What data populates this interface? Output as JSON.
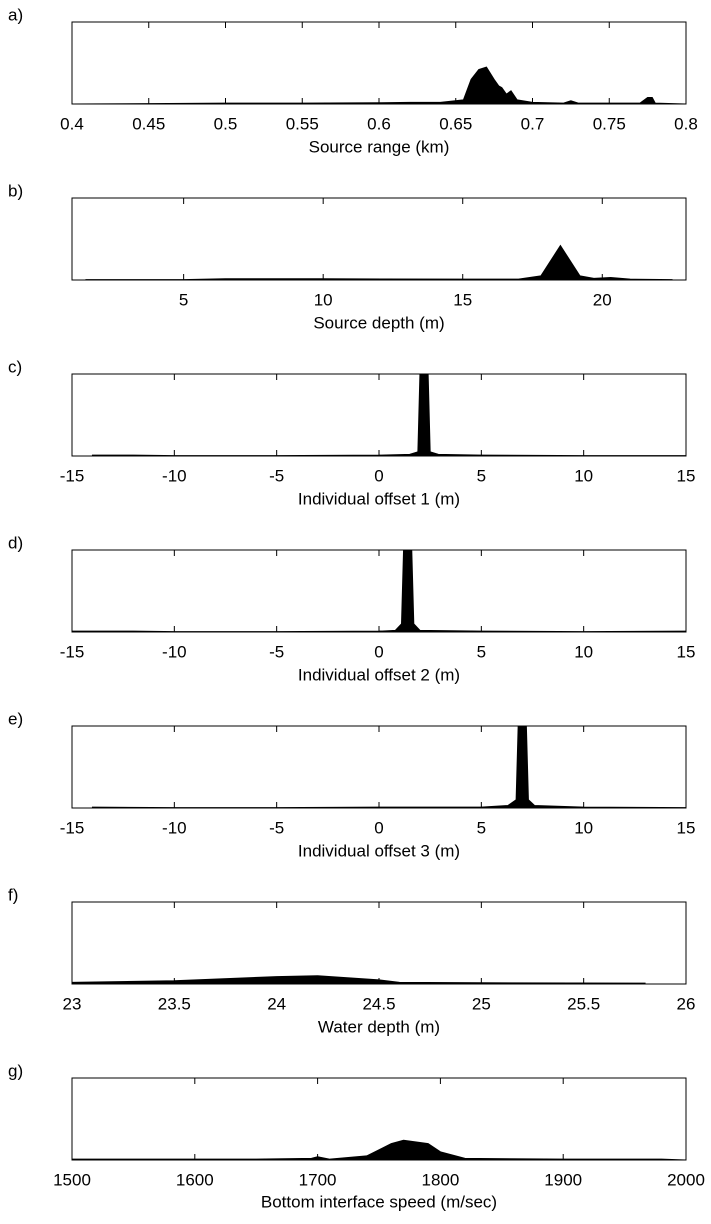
{
  "chart_data": [
    {
      "type": "area",
      "panel_label": "a)",
      "xlabel": "Source range (km)",
      "color": "#000000",
      "x": [
        0.4,
        0.45,
        0.5,
        0.55,
        0.6,
        0.62,
        0.64,
        0.655,
        0.66,
        0.665,
        0.67,
        0.675,
        0.678,
        0.68,
        0.683,
        0.686,
        0.69,
        0.7,
        0.72,
        0.725,
        0.73,
        0.77,
        0.775,
        0.778,
        0.78,
        0.8
      ],
      "values": [
        0,
        0.005,
        0.01,
        0.01,
        0.015,
        0.02,
        0.02,
        0.05,
        0.3,
        0.42,
        0.45,
        0.3,
        0.22,
        0.2,
        0.12,
        0.16,
        0.05,
        0.02,
        0.01,
        0.04,
        0.01,
        0.01,
        0.08,
        0.08,
        0.01,
        0
      ],
      "xlim": [
        0.4,
        0.8
      ],
      "ylim": [
        0,
        1
      ],
      "xticks": [
        0.4,
        0.45,
        0.5,
        0.55,
        0.6,
        0.65,
        0.7,
        0.75,
        0.8
      ]
    },
    {
      "type": "area",
      "panel_label": "b)",
      "xlabel": "Source depth (m)",
      "color": "#000000",
      "x": [
        1.5,
        5,
        6.5,
        10,
        15,
        17,
        17.8,
        18.5,
        19.2,
        19.7,
        20.3,
        21,
        22.5
      ],
      "values": [
        0.005,
        0.005,
        0.015,
        0.015,
        0.01,
        0.01,
        0.05,
        0.42,
        0.05,
        0.02,
        0.03,
        0.01,
        0.005
      ],
      "xlim": [
        1,
        23
      ],
      "ylim": [
        0,
        1
      ],
      "xticks": [
        5,
        10,
        15,
        20
      ]
    },
    {
      "type": "area",
      "panel_label": "c)",
      "xlabel": "Individual offset 1 (m)",
      "color": "#000000",
      "x": [
        -14,
        -12,
        -10,
        -5,
        0,
        1.5,
        1.9,
        2.0,
        2.2,
        2.4,
        2.5,
        2.9,
        5,
        10,
        15
      ],
      "values": [
        0.01,
        0.01,
        0.005,
        0.005,
        0.01,
        0.02,
        0.05,
        1,
        1,
        1,
        0.05,
        0.02,
        0.01,
        0.005,
        0.005
      ],
      "xlim": [
        -15,
        15
      ],
      "ylim": [
        0,
        1
      ],
      "xticks": [
        -15,
        -10,
        -5,
        0,
        5,
        10,
        15
      ]
    },
    {
      "type": "area",
      "panel_label": "d)",
      "xlabel": "Individual offset 2 (m)",
      "color": "#000000",
      "x": [
        -15,
        -12,
        -10,
        -5,
        0,
        0.8,
        1.1,
        1.2,
        1.4,
        1.6,
        1.7,
        2.0,
        5,
        10,
        15
      ],
      "values": [
        0.01,
        0.01,
        0.005,
        0.005,
        0.01,
        0.02,
        0.1,
        1,
        1,
        1,
        0.1,
        0.02,
        0.01,
        0.005,
        0.01
      ],
      "xlim": [
        -15,
        15
      ],
      "ylim": [
        0,
        1
      ],
      "xticks": [
        -15,
        -10,
        -5,
        0,
        5,
        10,
        15
      ]
    },
    {
      "type": "area",
      "panel_label": "e)",
      "xlabel": "Individual offset 3 (m)",
      "color": "#000000",
      "x": [
        -14,
        -10,
        -5,
        0,
        5,
        6.3,
        6.7,
        6.8,
        7.0,
        7.2,
        7.3,
        7.6,
        10,
        15
      ],
      "values": [
        0.01,
        0.005,
        0.005,
        0.01,
        0.01,
        0.03,
        0.1,
        1,
        1,
        1,
        0.1,
        0.03,
        0.01,
        0.005
      ],
      "xlim": [
        -15,
        15
      ],
      "ylim": [
        0,
        1
      ],
      "xticks": [
        -15,
        -10,
        -5,
        0,
        5,
        10,
        15
      ]
    },
    {
      "type": "area",
      "panel_label": "f)",
      "xlabel": "Water depth (m)",
      "color": "#000000",
      "x": [
        23,
        23.5,
        24,
        24.2,
        24.5,
        24.6,
        25,
        25.8
      ],
      "values": [
        0.02,
        0.04,
        0.09,
        0.1,
        0.05,
        0.02,
        0.015,
        0.01
      ],
      "xlim": [
        23,
        26
      ],
      "ylim": [
        0,
        1
      ],
      "xticks": [
        23,
        23.5,
        24,
        24.5,
        25,
        25.5,
        26
      ]
    },
    {
      "type": "area",
      "panel_label": "g)",
      "xlabel": "Bottom interface speed (m/sec)",
      "color": "#000000",
      "x": [
        1500,
        1650,
        1695,
        1700,
        1710,
        1740,
        1760,
        1770,
        1790,
        1800,
        1820,
        1900,
        1980,
        2000
      ],
      "values": [
        0.01,
        0.01,
        0.02,
        0.04,
        0.01,
        0.05,
        0.2,
        0.24,
        0.2,
        0.1,
        0.02,
        0.01,
        0.01,
        0
      ],
      "xlim": [
        1500,
        2000
      ],
      "ylim": [
        0,
        1
      ],
      "xticks": [
        1500,
        1600,
        1700,
        1800,
        1900,
        2000
      ]
    }
  ]
}
